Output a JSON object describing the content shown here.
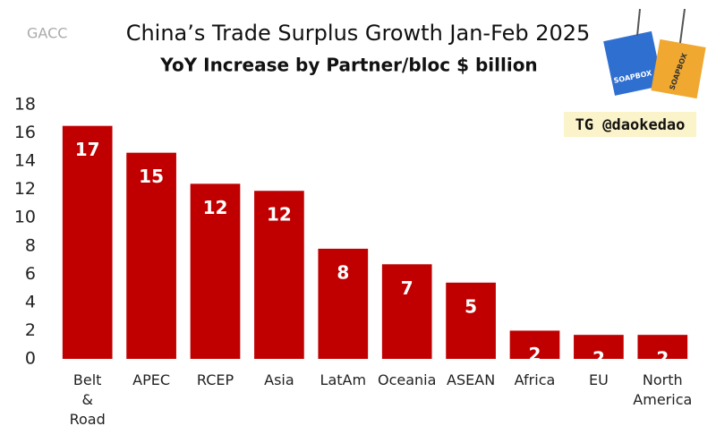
{
  "chart_data": {
    "type": "bar",
    "title": "China’s Trade Surplus Growth Jan-Feb 2025",
    "subtitle": "YoY Increase by Partner/bloc $ billion",
    "source": "GACC",
    "watermark": "TG @daokedao",
    "logo_labels": [
      "SOAPBOX",
      "SOAPBOX"
    ],
    "categories": [
      "Belt & Road",
      "APEC",
      "RCEP",
      "Asia",
      "LatAm",
      "Oceania",
      "ASEAN",
      "Africa",
      "EU",
      "North America"
    ],
    "values": [
      16.5,
      14.6,
      12.4,
      11.9,
      7.8,
      6.7,
      5.4,
      2.0,
      1.7,
      1.7
    ],
    "value_labels": [
      "17",
      "15",
      "12",
      "12",
      "8",
      "7",
      "5",
      "2",
      "2",
      "2"
    ],
    "color": "#c00000",
    "ylim": [
      0,
      18
    ],
    "yticks": [
      0,
      2,
      4,
      6,
      8,
      10,
      12,
      14,
      16,
      18
    ],
    "grid": false
  }
}
